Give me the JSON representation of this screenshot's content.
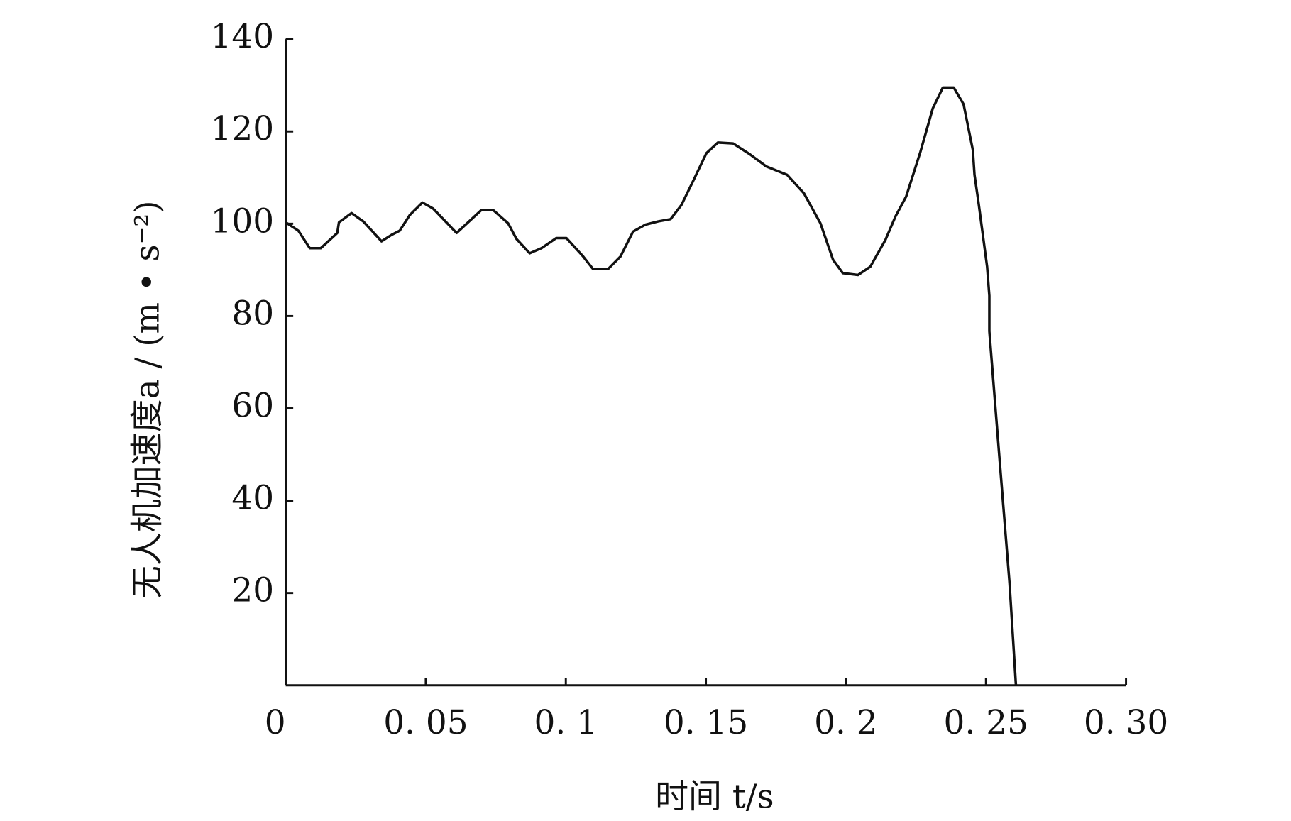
{
  "chart_data": {
    "type": "line",
    "xlabel": "时间 t/s",
    "ylabel": "无人机加速度a / (m • s⁻²)",
    "xlim": [
      0,
      0.3
    ],
    "xticks": [
      0,
      {
        "value": 0.05,
        "label": "0. 05"
      },
      {
        "value": 0.1,
        "label": "0. 1"
      },
      {
        "value": 0.15,
        "label": "0. 15"
      },
      {
        "value": 0.2,
        "label": "0. 2"
      },
      {
        "value": 0.25,
        "label": "0. 25"
      },
      {
        "value": 0.3,
        "label": "0. 30"
      }
    ],
    "ylim": [
      0,
      140
    ],
    "yticks": [
      20,
      40,
      60,
      80,
      100,
      120,
      140
    ],
    "series": [
      {
        "color": "#111111",
        "x": [
          0,
          0.0045,
          0.0086,
          0.0125,
          0.0184,
          0.019,
          0.0235,
          0.0277,
          0.0342,
          0.0378,
          0.0407,
          0.0443,
          0.0488,
          0.0526,
          0.061,
          0.0699,
          0.074,
          0.0794,
          0.0824,
          0.0871,
          0.0913,
          0.0966,
          0.1002,
          0.1062,
          0.1097,
          0.1151,
          0.1195,
          0.124,
          0.1284,
          0.1329,
          0.1374,
          0.1413,
          0.1454,
          0.1502,
          0.1543,
          0.1597,
          0.1656,
          0.1716,
          0.179,
          0.185,
          0.1909,
          0.1954,
          0.1989,
          0.2043,
          0.2087,
          0.2141,
          0.2177,
          0.2215,
          0.2266,
          0.231,
          0.2346,
          0.2385,
          0.242,
          0.2453,
          0.2459,
          0.2474,
          0.2504,
          0.2512,
          0.2512,
          0.2548,
          0.2584,
          0.2607
        ],
        "values": [
          100.3,
          98.5,
          94.7,
          94.7,
          98,
          100.3,
          102.3,
          100.5,
          96.2,
          97.6,
          98.5,
          101.9,
          104.6,
          103.3,
          98,
          103,
          103,
          100.1,
          96.7,
          93.6,
          94.7,
          96.9,
          96.9,
          92.9,
          90.2,
          90.2,
          92.9,
          98.3,
          99.8,
          100.5,
          101,
          104.1,
          109.2,
          115.3,
          117.6,
          117.4,
          115.1,
          112.4,
          110.6,
          106.6,
          100.1,
          92.2,
          89.3,
          88.9,
          90.7,
          96.5,
          101.6,
          105.9,
          115.6,
          125,
          129.5,
          129.5,
          125.9,
          116,
          110.6,
          104.3,
          90.7,
          84.4,
          76.7,
          49.3,
          22.2,
          0
        ]
      }
    ]
  }
}
